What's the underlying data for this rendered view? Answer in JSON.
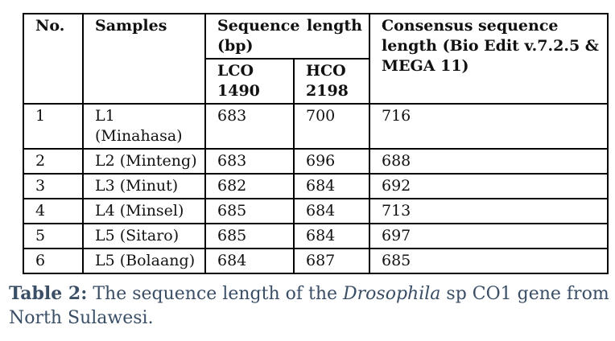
{
  "table": {
    "headers": {
      "no": "No.",
      "samples": "Samples",
      "sequence_length_a": "Sequence",
      "sequence_length_b": "length",
      "sequence_length_c": "(bp)",
      "consensus": "Consensus sequence length (Bio Edit v.7.2.5 & MEGA 11)",
      "lco": "LCO 1490",
      "hco": "HCO 2198"
    },
    "rows": [
      {
        "no": "1",
        "sample": "L1 (Minahasa)",
        "lco": "683",
        "hco": "700",
        "consensus": "716"
      },
      {
        "no": "2",
        "sample": "L2 (Minteng)",
        "lco": "683",
        "hco": "696",
        "consensus": "688"
      },
      {
        "no": "3",
        "sample": "L3 (Minut)",
        "lco": "682",
        "hco": "684",
        "consensus": "692"
      },
      {
        "no": "4",
        "sample": "L4 (Minsel)",
        "lco": "685",
        "hco": "684",
        "consensus": "713"
      },
      {
        "no": "5",
        "sample": "L5 (Sitaro)",
        "lco": "685",
        "hco": "684",
        "consensus": "697"
      },
      {
        "no": "6",
        "sample": "L5 (Bolaang)",
        "lco": "684",
        "hco": "687",
        "consensus": "685"
      }
    ]
  },
  "caption": {
    "label": "Table 2:",
    "text_before": " The sequence length of the ",
    "italic": "Drosophila",
    "text_after": " sp CO1 gene from North Sulawesi."
  }
}
